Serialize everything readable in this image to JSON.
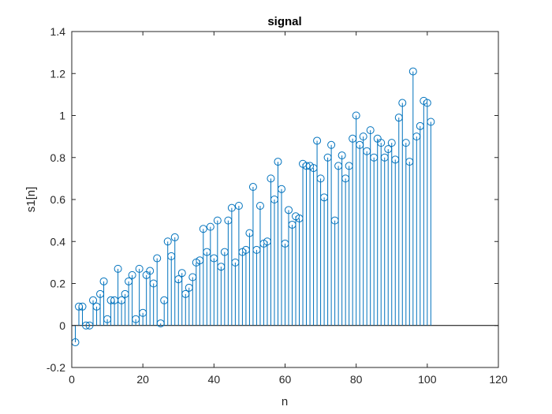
{
  "chart_data": {
    "type": "stem",
    "title": "signal",
    "xlabel": "n",
    "ylabel": "s1[n]",
    "xlim": [
      0,
      120
    ],
    "ylim": [
      -0.2,
      1.4
    ],
    "xticks": [
      "0",
      "20",
      "40",
      "60",
      "80",
      "100",
      "120"
    ],
    "yticks": [
      "-0.2",
      "0",
      "0.2",
      "0.4",
      "0.6",
      "0.8",
      "1",
      "1.2",
      "1.4"
    ],
    "grid": false,
    "baseline": 0,
    "color": "#0072bd",
    "x": [
      1,
      2,
      3,
      4,
      5,
      6,
      7,
      8,
      9,
      10,
      11,
      12,
      13,
      14,
      15,
      16,
      17,
      18,
      19,
      20,
      21,
      22,
      23,
      24,
      25,
      26,
      27,
      28,
      29,
      30,
      31,
      32,
      33,
      34,
      35,
      36,
      37,
      38,
      39,
      40,
      41,
      42,
      43,
      44,
      45,
      46,
      47,
      48,
      49,
      50,
      51,
      52,
      53,
      54,
      55,
      56,
      57,
      58,
      59,
      60,
      61,
      62,
      63,
      64,
      65,
      66,
      67,
      68,
      69,
      70,
      71,
      72,
      73,
      74,
      75,
      76,
      77,
      78,
      79,
      80,
      81,
      82,
      83,
      84,
      85,
      86,
      87,
      88,
      89,
      90,
      91,
      92,
      93,
      94,
      95,
      96,
      97,
      98,
      99,
      100,
      101
    ],
    "y": [
      -0.08,
      0.09,
      0.09,
      0.0,
      0.0,
      0.12,
      0.09,
      0.15,
      0.21,
      0.03,
      0.12,
      0.12,
      0.27,
      0.12,
      0.15,
      0.21,
      0.24,
      0.03,
      0.27,
      0.06,
      0.24,
      0.26,
      0.2,
      0.32,
      0.01,
      0.12,
      0.4,
      0.33,
      0.42,
      0.22,
      0.25,
      0.15,
      0.18,
      0.23,
      0.3,
      0.31,
      0.46,
      0.35,
      0.47,
      0.32,
      0.5,
      0.28,
      0.35,
      0.5,
      0.56,
      0.3,
      0.57,
      0.35,
      0.36,
      0.44,
      0.66,
      0.36,
      0.57,
      0.39,
      0.4,
      0.7,
      0.6,
      0.78,
      0.65,
      0.39,
      0.55,
      0.48,
      0.52,
      0.51,
      0.77,
      0.76,
      0.76,
      0.75,
      0.88,
      0.7,
      0.61,
      0.8,
      0.86,
      0.5,
      0.76,
      0.81,
      0.7,
      0.76,
      0.89,
      1.0,
      0.86,
      0.9,
      0.83,
      0.93,
      0.8,
      0.89,
      0.87,
      0.8,
      0.84,
      0.87,
      0.79,
      0.99,
      1.06,
      0.87,
      0.78,
      1.21,
      0.9,
      0.95,
      1.07,
      1.06,
      0.97
    ]
  }
}
